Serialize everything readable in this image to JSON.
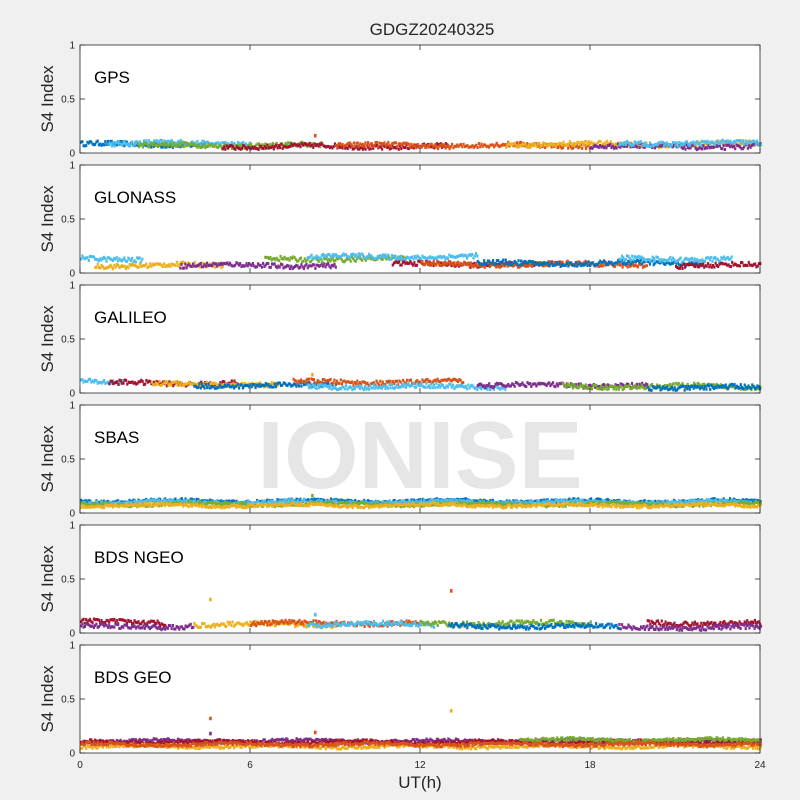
{
  "figure_title": "GDGZ20240325",
  "watermark": "IONISE",
  "chart_data": {
    "type": "scatter",
    "xlabel": "UT(h)",
    "ylabel": "S4 Index",
    "xlim": [
      0,
      24
    ],
    "ylim": [
      0,
      1
    ],
    "x_ticks": [
      "0",
      "6",
      "12",
      "18",
      "24"
    ],
    "y_ticks": [
      "0",
      "0.5",
      "1"
    ],
    "grid": false,
    "series_colors": [
      "#0072BD",
      "#D95319",
      "#EDB120",
      "#7E2F8E",
      "#77AC30",
      "#4DBEEE",
      "#A2142F"
    ],
    "panels": [
      {
        "name": "GPS",
        "baseline": 0.07,
        "spread": 0.03,
        "arcs": [
          {
            "color": 0,
            "x0": 0.0,
            "x1": 4.5,
            "level": 0.08
          },
          {
            "color": 5,
            "x0": 1.0,
            "x1": 6.0,
            "level": 0.09
          },
          {
            "color": 4,
            "x0": 2.0,
            "x1": 8.5,
            "level": 0.07
          },
          {
            "color": 6,
            "x0": 5.0,
            "x1": 13.0,
            "level": 0.06
          },
          {
            "color": 1,
            "x0": 9.0,
            "x1": 18.0,
            "level": 0.07
          },
          {
            "color": 2,
            "x0": 15.0,
            "x1": 24.0,
            "level": 0.08
          },
          {
            "color": 3,
            "x0": 18.0,
            "x1": 24.0,
            "level": 0.06
          },
          {
            "color": 5,
            "x0": 19.0,
            "x1": 24.0,
            "level": 0.09
          }
        ],
        "outliers": [
          {
            "x": 8.3,
            "y": 0.16,
            "color": 1
          }
        ]
      },
      {
        "name": "GLONASS",
        "baseline": 0.08,
        "spread": 0.03,
        "arcs": [
          {
            "color": 5,
            "x0": 0.0,
            "x1": 2.2,
            "level": 0.13
          },
          {
            "color": 2,
            "x0": 0.5,
            "x1": 5.0,
            "level": 0.07
          },
          {
            "color": 3,
            "x0": 3.5,
            "x1": 9.0,
            "level": 0.07
          },
          {
            "color": 4,
            "x0": 6.5,
            "x1": 11.5,
            "level": 0.13
          },
          {
            "color": 5,
            "x0": 8.0,
            "x1": 14.0,
            "level": 0.15
          },
          {
            "color": 6,
            "x0": 11.0,
            "x1": 17.0,
            "level": 0.08
          },
          {
            "color": 1,
            "x0": 12.0,
            "x1": 20.0,
            "level": 0.08
          },
          {
            "color": 0,
            "x0": 14.0,
            "x1": 22.0,
            "level": 0.09
          },
          {
            "color": 5,
            "x0": 19.0,
            "x1": 23.0,
            "level": 0.13
          },
          {
            "color": 6,
            "x0": 21.0,
            "x1": 24.0,
            "level": 0.07
          }
        ],
        "outliers": []
      },
      {
        "name": "GALILEO",
        "baseline": 0.07,
        "spread": 0.03,
        "arcs": [
          {
            "color": 5,
            "x0": 0.0,
            "x1": 1.5,
            "level": 0.11
          },
          {
            "color": 6,
            "x0": 1.0,
            "x1": 5.5,
            "level": 0.09
          },
          {
            "color": 2,
            "x0": 2.5,
            "x1": 7.0,
            "level": 0.08
          },
          {
            "color": 0,
            "x0": 4.0,
            "x1": 9.0,
            "level": 0.07
          },
          {
            "color": 1,
            "x0": 7.5,
            "x1": 13.5,
            "level": 0.1
          },
          {
            "color": 5,
            "x0": 8.0,
            "x1": 15.0,
            "level": 0.06
          },
          {
            "color": 3,
            "x0": 14.0,
            "x1": 20.0,
            "level": 0.07
          },
          {
            "color": 4,
            "x0": 17.0,
            "x1": 24.0,
            "level": 0.06
          },
          {
            "color": 0,
            "x0": 20.0,
            "x1": 24.0,
            "level": 0.05
          }
        ],
        "outliers": [
          {
            "x": 8.2,
            "y": 0.17,
            "color": 2
          }
        ]
      },
      {
        "name": "SBAS",
        "baseline": 0.1,
        "spread": 0.02,
        "arcs": [
          {
            "color": 0,
            "x0": 0.0,
            "x1": 24.0,
            "level": 0.11
          },
          {
            "color": 5,
            "x0": 0.0,
            "x1": 24.0,
            "level": 0.1
          },
          {
            "color": 4,
            "x0": 0.0,
            "x1": 24.0,
            "level": 0.08
          },
          {
            "color": 2,
            "x0": 0.0,
            "x1": 24.0,
            "level": 0.07
          }
        ],
        "outliers": [
          {
            "x": 8.2,
            "y": 0.16,
            "color": 4
          }
        ]
      },
      {
        "name": "BDS NGEO",
        "baseline": 0.07,
        "spread": 0.03,
        "arcs": [
          {
            "color": 6,
            "x0": 0.0,
            "x1": 3.0,
            "level": 0.1
          },
          {
            "color": 3,
            "x0": 0.0,
            "x1": 4.0,
            "level": 0.06
          },
          {
            "color": 2,
            "x0": 4.0,
            "x1": 9.0,
            "level": 0.08
          },
          {
            "color": 1,
            "x0": 6.0,
            "x1": 12.0,
            "level": 0.09
          },
          {
            "color": 5,
            "x0": 8.0,
            "x1": 12.5,
            "level": 0.08
          },
          {
            "color": 4,
            "x0": 12.0,
            "x1": 18.0,
            "level": 0.09
          },
          {
            "color": 0,
            "x0": 13.0,
            "x1": 19.0,
            "level": 0.06
          },
          {
            "color": 6,
            "x0": 20.0,
            "x1": 24.0,
            "level": 0.09
          },
          {
            "color": 3,
            "x0": 19.0,
            "x1": 24.0,
            "level": 0.05
          }
        ],
        "outliers": [
          {
            "x": 4.6,
            "y": 0.31,
            "color": 2
          },
          {
            "x": 13.1,
            "y": 0.39,
            "color": 1
          },
          {
            "x": 8.3,
            "y": 0.17,
            "color": 5
          }
        ]
      },
      {
        "name": "BDS GEO",
        "baseline": 0.1,
        "spread": 0.02,
        "arcs": [
          {
            "color": 3,
            "x0": 0.0,
            "x1": 24.0,
            "level": 0.11
          },
          {
            "color": 6,
            "x0": 0.0,
            "x1": 24.0,
            "level": 0.1
          },
          {
            "color": 4,
            "x0": 15.5,
            "x1": 24.0,
            "level": 0.12
          },
          {
            "color": 2,
            "x0": 0.0,
            "x1": 24.0,
            "level": 0.06
          },
          {
            "color": 1,
            "x0": 0.0,
            "x1": 24.0,
            "level": 0.08
          }
        ],
        "outliers": [
          {
            "x": 4.6,
            "y": 0.32,
            "color": 1
          },
          {
            "x": 4.6,
            "y": 0.18,
            "color": 3
          },
          {
            "x": 13.1,
            "y": 0.39,
            "color": 2
          },
          {
            "x": 8.3,
            "y": 0.19,
            "color": 1
          }
        ]
      }
    ]
  }
}
